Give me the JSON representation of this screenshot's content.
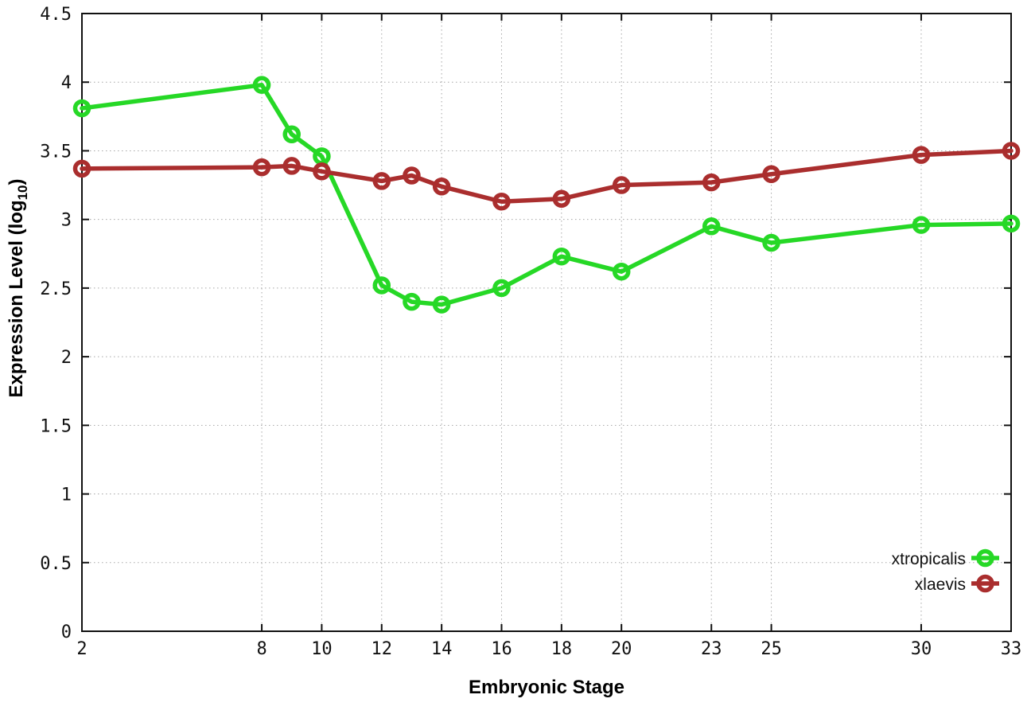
{
  "chart_data": {
    "type": "line",
    "title": "",
    "xlabel": "Embryonic Stage",
    "ylabel": "Expression Level (log10)",
    "ylabel_parts": [
      "Expression Level (log",
      "10",
      ")"
    ],
    "x": [
      2,
      8,
      9,
      10,
      12,
      13,
      14,
      16,
      18,
      20,
      23,
      25,
      30,
      33
    ],
    "series": [
      {
        "name": "xtropicalis",
        "color": "#26d826",
        "marker": "open-circle",
        "values": [
          3.81,
          3.98,
          3.62,
          3.46,
          2.52,
          2.4,
          2.38,
          2.5,
          2.73,
          2.62,
          2.95,
          2.83,
          2.96,
          2.97
        ]
      },
      {
        "name": "xlaevis",
        "color": "#aa2e2e",
        "marker": "open-circle",
        "values": [
          3.37,
          3.38,
          3.39,
          3.35,
          3.28,
          3.32,
          3.24,
          3.13,
          3.15,
          3.25,
          3.27,
          3.33,
          3.47,
          3.5
        ]
      }
    ],
    "xlim": [
      2,
      33
    ],
    "ylim": [
      0,
      4.5
    ],
    "x_ticks": [
      2,
      8,
      10,
      12,
      14,
      16,
      18,
      20,
      23,
      25,
      30,
      33
    ],
    "x_tick_labels": [
      "2",
      "8",
      "10",
      "12",
      "14",
      "16",
      "18",
      "20",
      "23",
      "25",
      "30",
      "33"
    ],
    "y_ticks": [
      0,
      0.5,
      1,
      1.5,
      2,
      2.5,
      3,
      3.5,
      4,
      4.5
    ],
    "y_tick_labels": [
      "0",
      "0.5",
      "1",
      "1.5",
      "2",
      "2.5",
      "3",
      "3.5",
      "4",
      "4.5"
    ],
    "grid": true,
    "grid_style": "dotted",
    "legend_position": "bottom-right",
    "legend": [
      "xtropicalis",
      "xlaevis"
    ]
  },
  "colors": {
    "background": "#ffffff",
    "axis": "#111111",
    "grid": "#a6a6a6",
    "text": "#111111"
  }
}
